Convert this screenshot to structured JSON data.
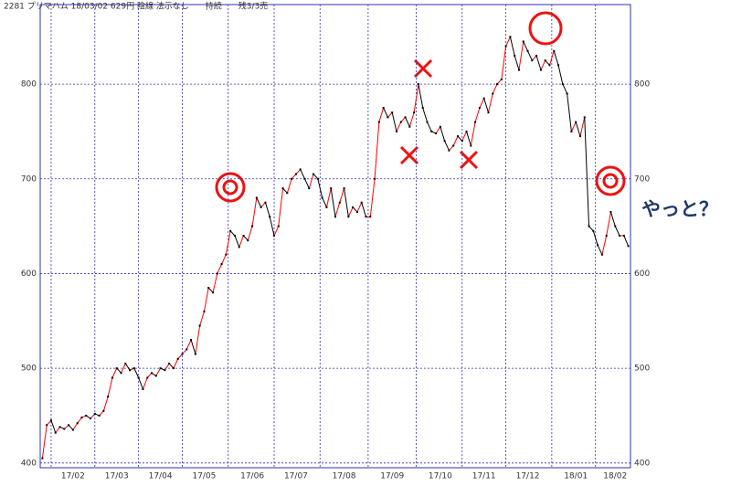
{
  "chart_data": {
    "type": "line",
    "title": "2281 プリマハム 18/03/02 629円 陰線 法示なし　　持続　　残3/3売",
    "annotation": "やっと？",
    "categories": [
      null,
      null,
      null,
      null,
      null,
      null,
      null,
      "17/02",
      null,
      null,
      null,
      null,
      null,
      null,
      null,
      null,
      null,
      "17/03",
      null,
      null,
      null,
      null,
      null,
      null,
      null,
      null,
      null,
      "17/04",
      null,
      null,
      null,
      null,
      null,
      null,
      null,
      null,
      null,
      "17/05",
      null,
      null,
      null,
      null,
      null,
      null,
      null,
      null,
      null,
      null,
      "17/06",
      null,
      null,
      null,
      null,
      null,
      null,
      null,
      null,
      null,
      "17/07",
      null,
      null,
      null,
      null,
      null,
      null,
      null,
      null,
      null,
      null,
      "17/08",
      null,
      null,
      null,
      null,
      null,
      null,
      null,
      null,
      null,
      null,
      "17/09",
      null,
      null,
      null,
      null,
      null,
      null,
      null,
      null,
      null,
      null,
      "17/10",
      null,
      null,
      null,
      null,
      null,
      null,
      null,
      null,
      null,
      "17/11",
      null,
      null,
      null,
      null,
      null,
      null,
      null,
      null,
      null,
      "17/12",
      null,
      null,
      null,
      null,
      null,
      null,
      null,
      null,
      null,
      null,
      "18/01",
      null,
      null,
      null,
      null,
      null,
      null,
      null,
      null,
      "18/02",
      null,
      null,
      null
    ],
    "values": [
      405,
      440,
      445,
      432,
      438,
      436,
      440,
      435,
      442,
      448,
      450,
      447,
      452,
      450,
      455,
      470,
      490,
      500,
      495,
      505,
      498,
      500,
      490,
      478,
      490,
      495,
      492,
      500,
      498,
      505,
      500,
      510,
      515,
      520,
      530,
      515,
      545,
      560,
      585,
      580,
      600,
      610,
      620,
      645,
      640,
      628,
      640,
      635,
      650,
      680,
      670,
      675,
      660,
      640,
      650,
      690,
      685,
      700,
      705,
      710,
      700,
      690,
      705,
      700,
      680,
      670,
      690,
      660,
      675,
      690,
      660,
      670,
      665,
      675,
      660,
      660,
      700,
      760,
      775,
      765,
      770,
      750,
      760,
      765,
      755,
      770,
      800,
      775,
      760,
      750,
      748,
      755,
      740,
      730,
      735,
      745,
      740,
      750,
      735,
      760,
      775,
      785,
      770,
      790,
      800,
      805,
      840,
      850,
      830,
      815,
      845,
      835,
      825,
      830,
      815,
      825,
      820,
      835,
      820,
      800,
      790,
      750,
      760,
      745,
      765,
      650,
      645,
      630,
      620,
      640,
      665,
      650,
      640,
      640,
      629
    ],
    "up_color": "#ff0000",
    "down_color": "#000000",
    "ylim": [
      395,
      884
    ],
    "yticks": [
      400,
      500,
      600,
      700,
      800
    ],
    "grid": true
  }
}
